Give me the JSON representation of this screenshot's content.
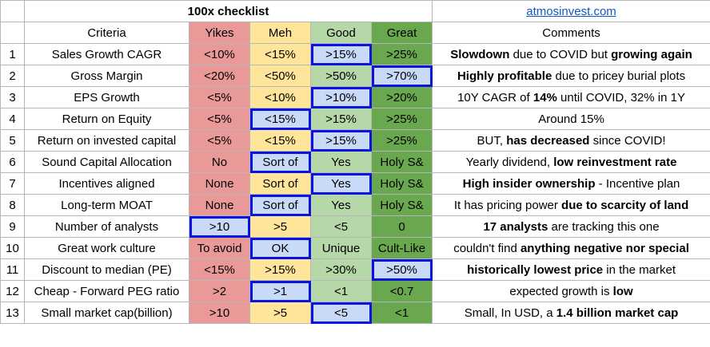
{
  "title": "100x checklist",
  "link": "atmosinvest.com",
  "headers": {
    "criteria": "Criteria",
    "yikes": "Yikes",
    "meh": "Meh",
    "good": "Good",
    "great": "Great",
    "comments": "Comments"
  },
  "rows": [
    {
      "n": "1",
      "criteria": "Sales Growth CAGR",
      "yikes": "<10%",
      "meh": "<15%",
      "good": ">15%",
      "great": ">25%",
      "selected": "good",
      "comment": [
        {
          "t": "Slowdown",
          "b": true
        },
        {
          "t": " due to COVID but ",
          "b": false
        },
        {
          "t": "growing again",
          "b": true
        }
      ]
    },
    {
      "n": "2",
      "criteria": "Gross Margin",
      "yikes": "<20%",
      "meh": "<50%",
      "good": ">50%",
      "great": ">70%",
      "selected": "great",
      "comment": [
        {
          "t": "Highly profitable",
          "b": true
        },
        {
          "t": " due to pricey burial plots",
          "b": false
        }
      ]
    },
    {
      "n": "3",
      "criteria": "EPS Growth",
      "yikes": "<5%",
      "meh": "<10%",
      "good": ">10%",
      "great": ">20%",
      "selected": "good",
      "comment": [
        {
          "t": "10Y CAGR of ",
          "b": false
        },
        {
          "t": "14%",
          "b": true
        },
        {
          "t": " until COVID, 32% in 1Y",
          "b": false
        }
      ]
    },
    {
      "n": "4",
      "criteria": "Return on Equity",
      "yikes": "<5%",
      "meh": "<15%",
      "good": ">15%",
      "great": ">25%",
      "selected": "meh",
      "comment": [
        {
          "t": "Around 15%",
          "b": false
        }
      ]
    },
    {
      "n": "5",
      "criteria": "Return on invested capital",
      "yikes": "<5%",
      "meh": "<15%",
      "good": ">15%",
      "great": ">25%",
      "selected": "good",
      "comment": [
        {
          "t": "BUT, ",
          "b": false
        },
        {
          "t": "has decreased",
          "b": true
        },
        {
          "t": " since COVID!",
          "b": false
        }
      ]
    },
    {
      "n": "6",
      "criteria": "Sound Capital Allocation",
      "yikes": "No",
      "meh": "Sort of",
      "good": "Yes",
      "great": "Holy S&",
      "selected": "meh",
      "comment": [
        {
          "t": "Yearly dividend, ",
          "b": false
        },
        {
          "t": "low reinvestment rate",
          "b": true
        }
      ]
    },
    {
      "n": "7",
      "criteria": "Incentives aligned",
      "yikes": "None",
      "meh": "Sort of",
      "good": "Yes",
      "great": "Holy S&",
      "selected": "good",
      "comment": [
        {
          "t": "High insider ownership",
          "b": true
        },
        {
          "t": " - Incentive plan",
          "b": false
        }
      ]
    },
    {
      "n": "8",
      "criteria": "Long-term MOAT",
      "yikes": "None",
      "meh": "Sort of",
      "good": "Yes",
      "great": "Holy S&",
      "selected": "meh",
      "comment": [
        {
          "t": "It has pricing power ",
          "b": false
        },
        {
          "t": "due to scarcity of land",
          "b": true
        }
      ]
    },
    {
      "n": "9",
      "criteria": "Number of analysts",
      "yikes": ">10",
      "meh": ">5",
      "good": "<5",
      "great": "0",
      "selected": "yikes",
      "comment": [
        {
          "t": "17 analysts",
          "b": true
        },
        {
          "t": " are tracking this one",
          "b": false
        }
      ]
    },
    {
      "n": "10",
      "criteria": "Great work culture",
      "yikes": "To avoid",
      "meh": "OK",
      "good": "Unique",
      "great": "Cult-Like",
      "selected": "meh",
      "comment": [
        {
          "t": "couldn't find ",
          "b": false
        },
        {
          "t": "anything negative nor special",
          "b": true
        }
      ]
    },
    {
      "n": "11",
      "criteria": "Discount to median (PE)",
      "yikes": "<15%",
      "meh": ">15%",
      "good": ">30%",
      "great": ">50%",
      "selected": "great",
      "comment": [
        {
          "t": "historically lowest price",
          "b": true
        },
        {
          "t": " in the market",
          "b": false
        }
      ]
    },
    {
      "n": "12",
      "criteria": "Cheap - Forward PEG ratio",
      "yikes": ">2",
      "meh": ">1",
      "good": "<1",
      "great": "<0.7",
      "selected": "meh",
      "comment": [
        {
          "t": "expected growth is ",
          "b": false
        },
        {
          "t": "low",
          "b": true
        }
      ]
    },
    {
      "n": "13",
      "criteria": "Small market cap(billion)",
      "yikes": ">10",
      "meh": ">5",
      "good": "<5",
      "great": "<1",
      "selected": "good",
      "comment": [
        {
          "t": "Small, In USD, a ",
          "b": false
        },
        {
          "t": "1.4 billion market cap",
          "b": true
        }
      ]
    }
  ],
  "colors": {
    "yikes": "#ea9999",
    "meh": "#ffe599",
    "good": "#b6d7a8",
    "great": "#6aa84f",
    "selected_fill": "#c9daf8",
    "selected_border": "#0b13e0",
    "link": "#1155cc"
  }
}
